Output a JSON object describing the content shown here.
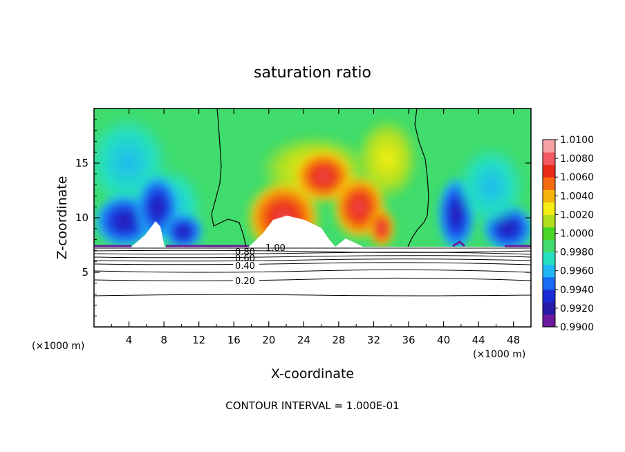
{
  "chart_data": {
    "type": "heatmap",
    "title": "saturation ratio",
    "xlabel": "X-coordinate",
    "ylabel": "Z-coordinate",
    "x_unit": "(×1000 m)",
    "y_unit": "(×1000 m)",
    "xlim": [
      0,
      50
    ],
    "ylim": [
      0,
      20
    ],
    "x_ticks": [
      4,
      8,
      12,
      16,
      20,
      24,
      28,
      32,
      36,
      40,
      44,
      48
    ],
    "y_ticks": [
      5,
      10,
      15
    ],
    "colorbar": {
      "min": 0.99,
      "max": 1.01,
      "tick_values": [
        0.99,
        0.992,
        0.994,
        0.996,
        0.998,
        1.0,
        1.002,
        1.004,
        1.006,
        1.008,
        1.01
      ],
      "tick_labels": [
        "0.9900",
        "0.9920",
        "0.9940",
        "0.9960",
        "0.9980",
        "1.0000",
        "1.0020",
        "1.0040",
        "1.0060",
        "1.0080",
        "1.0100"
      ],
      "colors": [
        "#6a1a9a",
        "#2a1aa8",
        "#1a2ad6",
        "#1a6cf2",
        "#21b7f5",
        "#25e0c0",
        "#40dc6c",
        "#49d626",
        "#b2e020",
        "#f6ee12",
        "#f8b40c",
        "#f46a10",
        "#ea2a18",
        "#f25a62",
        "#f7a2a6"
      ]
    },
    "contours": {
      "interval_text": "CONTOUR INTERVAL = 1.000E-01",
      "line_labels": [
        "0.20",
        "0.40",
        "0.60",
        "0.80",
        "1.00"
      ],
      "levels": [
        0.2,
        0.4,
        0.6,
        0.8,
        1.0
      ]
    },
    "cloud_base_z": 7.2,
    "legend_position": "right"
  }
}
